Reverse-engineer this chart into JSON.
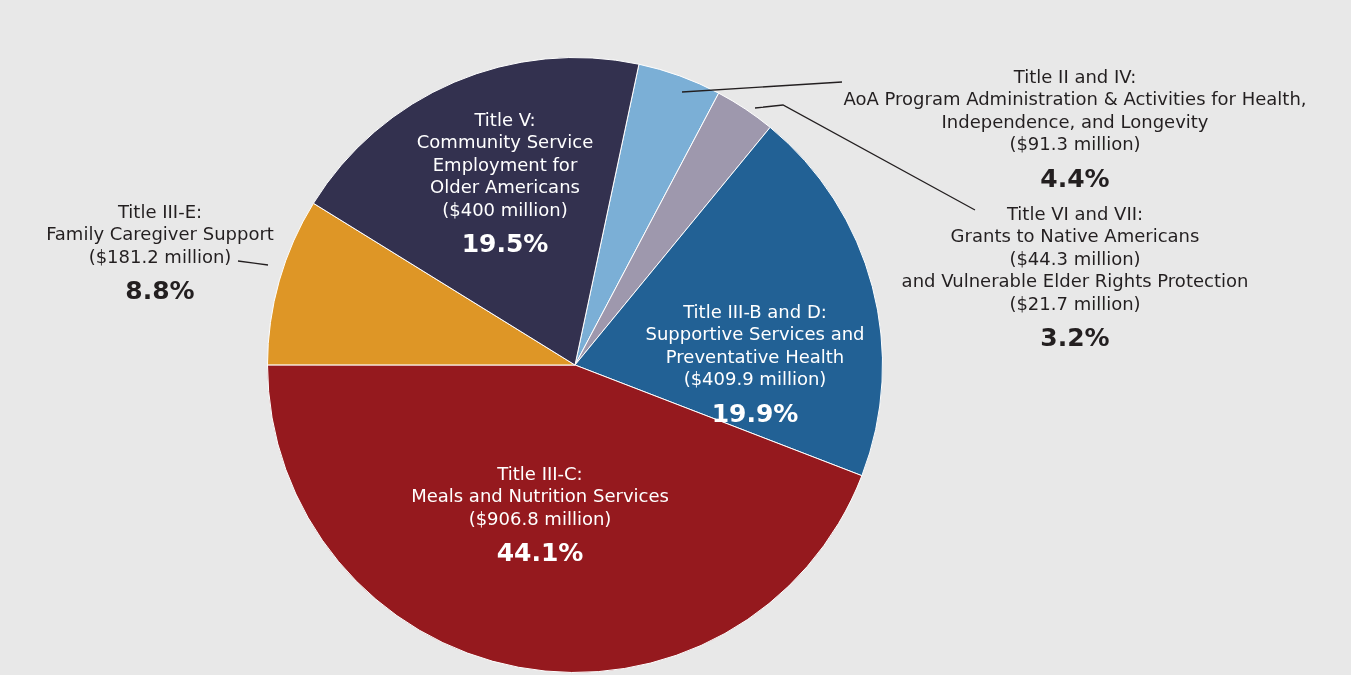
{
  "chart_data": {
    "type": "pie",
    "categories": [
      "Title II and IV:\nAoA Program Administration & Activities for Health,\nIndependence, and Longevity\n($91.3 million)",
      "Title VI and VII:\nGrants to Native Americans\n($44.3 million)\nand Vulnerable Elder Rights Protection\n($21.7 million)",
      "Title III-B and D:\nSupportive Services and\nPreventative Health\n($409.9 million)",
      "Title III-C:\nMeals and Nutrition Services\n($906.8 million)",
      "Title III-E:\nFamily Caregiver Support\n($181.2 million)",
      "Title V:\nCommunity Service\nEmployment for\nOlder Americans\n($400 million)"
    ],
    "values": [
      4.4,
      3.2,
      19.9,
      44.1,
      8.8,
      19.5
    ],
    "colors": [
      "#7bafd6",
      "#9e98ad",
      "#226195",
      "#95191e",
      "#de9626",
      "#33314f"
    ],
    "value_labels": [
      "4.4%",
      "3.2%",
      "19.9%",
      "44.1%",
      "8.8%",
      "19.5%"
    ],
    "legend": false
  }
}
